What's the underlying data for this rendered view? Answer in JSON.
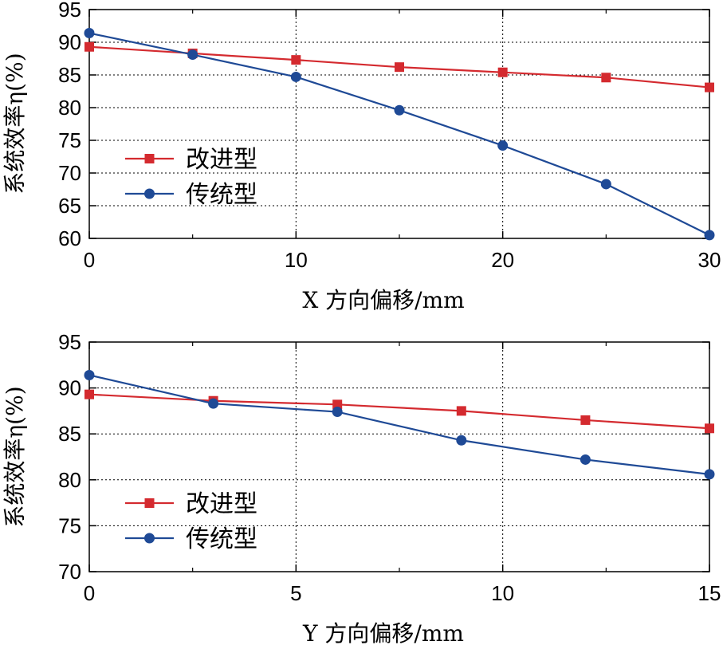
{
  "chart_data": [
    {
      "type": "line",
      "xlabel": "X 方向偏移/mm",
      "ylabel": "系统效率η(%)",
      "xlim": [
        0,
        30
      ],
      "ylim": [
        60,
        95
      ],
      "xticks": [
        0,
        10,
        20,
        30
      ],
      "yticks": [
        60,
        65,
        70,
        75,
        80,
        85,
        90,
        95
      ],
      "x_minor_step": 5,
      "grid": "dotted, major x and y",
      "legend_position": "center-left",
      "series": [
        {
          "name": "改进型",
          "color": "#d42a2f",
          "marker": "square",
          "x": [
            0,
            5,
            10,
            15,
            20,
            25,
            30
          ],
          "y": [
            89.3,
            88.3,
            87.3,
            86.2,
            85.4,
            84.6,
            83.1
          ]
        },
        {
          "name": "传统型",
          "color": "#1f4a96",
          "marker": "circle",
          "x": [
            0,
            5,
            10,
            15,
            20,
            25,
            30
          ],
          "y": [
            91.4,
            88.1,
            84.7,
            79.6,
            74.2,
            68.3,
            60.5
          ]
        }
      ]
    },
    {
      "type": "line",
      "xlabel": "Y 方向偏移/mm",
      "ylabel": "系统效率η(%)",
      "xlim": [
        0,
        15
      ],
      "ylim": [
        70,
        95
      ],
      "xticks": [
        0,
        5,
        10,
        15
      ],
      "yticks": [
        70,
        75,
        80,
        85,
        90,
        95
      ],
      "x_minor_step": 2.5,
      "grid": "dotted, major x and y",
      "legend_position": "center-left",
      "series": [
        {
          "name": "改进型",
          "color": "#d42a2f",
          "marker": "square",
          "x": [
            0,
            3,
            6,
            9,
            12,
            15
          ],
          "y": [
            89.3,
            88.6,
            88.2,
            87.5,
            86.5,
            85.6
          ]
        },
        {
          "name": "传统型",
          "color": "#1f4a96",
          "marker": "circle",
          "x": [
            0,
            3,
            6,
            9,
            12,
            15
          ],
          "y": [
            91.4,
            88.3,
            87.4,
            84.3,
            82.2,
            80.6
          ]
        }
      ]
    }
  ]
}
